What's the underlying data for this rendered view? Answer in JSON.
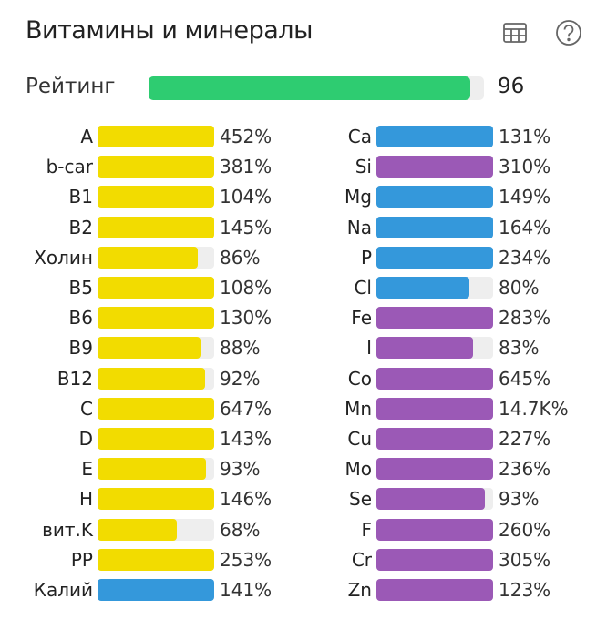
{
  "header": {
    "title": "Витамины и минералы",
    "icons": [
      "table-icon",
      "help-icon"
    ]
  },
  "rating": {
    "label": "Рейтинг",
    "value": "96",
    "fill_percent": 96
  },
  "colors": {
    "vitamin": "#f2dc00",
    "macro": "#3498db",
    "micro": "#9b59b6",
    "rating": "#2ecc71",
    "track": "#eeeeee"
  },
  "left": [
    {
      "label": "A",
      "value": "452%",
      "pct": 452,
      "type": "vitamin"
    },
    {
      "label": "b-car",
      "value": "381%",
      "pct": 381,
      "type": "vitamin"
    },
    {
      "label": "B1",
      "value": "104%",
      "pct": 104,
      "type": "vitamin"
    },
    {
      "label": "B2",
      "value": "145%",
      "pct": 145,
      "type": "vitamin"
    },
    {
      "label": "Холин",
      "value": "86%",
      "pct": 86,
      "type": "vitamin"
    },
    {
      "label": "B5",
      "value": "108%",
      "pct": 108,
      "type": "vitamin"
    },
    {
      "label": "B6",
      "value": "130%",
      "pct": 130,
      "type": "vitamin"
    },
    {
      "label": "B9",
      "value": "88%",
      "pct": 88,
      "type": "vitamin"
    },
    {
      "label": "B12",
      "value": "92%",
      "pct": 92,
      "type": "vitamin"
    },
    {
      "label": "C",
      "value": "647%",
      "pct": 647,
      "type": "vitamin"
    },
    {
      "label": "D",
      "value": "143%",
      "pct": 143,
      "type": "vitamin"
    },
    {
      "label": "E",
      "value": "93%",
      "pct": 93,
      "type": "vitamin"
    },
    {
      "label": "H",
      "value": "146%",
      "pct": 146,
      "type": "vitamin"
    },
    {
      "label": "вит.K",
      "value": "68%",
      "pct": 68,
      "type": "vitamin"
    },
    {
      "label": "PP",
      "value": "253%",
      "pct": 253,
      "type": "vitamin"
    },
    {
      "label": "Калий",
      "value": "141%",
      "pct": 141,
      "type": "macro"
    }
  ],
  "right": [
    {
      "label": "Ca",
      "value": "131%",
      "pct": 131,
      "type": "macro"
    },
    {
      "label": "Si",
      "value": "310%",
      "pct": 310,
      "type": "micro"
    },
    {
      "label": "Mg",
      "value": "149%",
      "pct": 149,
      "type": "macro"
    },
    {
      "label": "Na",
      "value": "164%",
      "pct": 164,
      "type": "macro"
    },
    {
      "label": "P",
      "value": "234%",
      "pct": 234,
      "type": "macro"
    },
    {
      "label": "Cl",
      "value": "80%",
      "pct": 80,
      "type": "macro"
    },
    {
      "label": "Fe",
      "value": "283%",
      "pct": 283,
      "type": "micro"
    },
    {
      "label": "I",
      "value": "83%",
      "pct": 83,
      "type": "micro"
    },
    {
      "label": "Co",
      "value": "645%",
      "pct": 645,
      "type": "micro"
    },
    {
      "label": "Mn",
      "value": "14.7K%",
      "pct": 14700,
      "type": "micro"
    },
    {
      "label": "Cu",
      "value": "227%",
      "pct": 227,
      "type": "micro"
    },
    {
      "label": "Mo",
      "value": "236%",
      "pct": 236,
      "type": "micro"
    },
    {
      "label": "Se",
      "value": "93%",
      "pct": 93,
      "type": "micro"
    },
    {
      "label": "F",
      "value": "260%",
      "pct": 260,
      "type": "micro"
    },
    {
      "label": "Cr",
      "value": "305%",
      "pct": 305,
      "type": "micro"
    },
    {
      "label": "Zn",
      "value": "123%",
      "pct": 123,
      "type": "micro"
    }
  ]
}
